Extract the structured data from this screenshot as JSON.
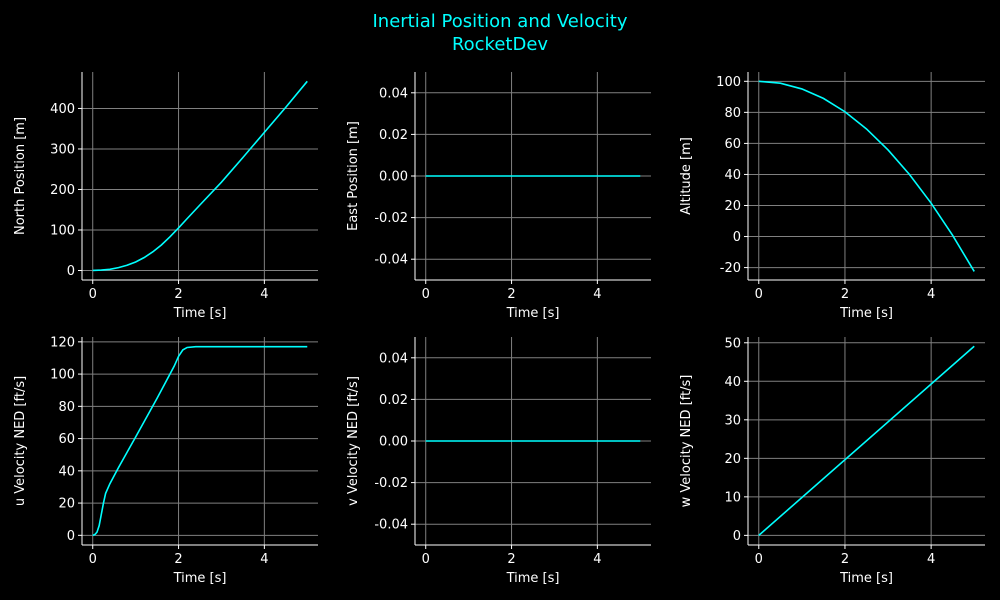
{
  "figure": {
    "title_line1": "Inertial Position and Velocity",
    "title_line2": "RocketDev",
    "background": "#000000",
    "text_color": "#ffffff",
    "accent": "#00ffff",
    "grid_color": "#808080"
  },
  "chart_data": [
    {
      "type": "line",
      "xlabel": "Time [s]",
      "ylabel": "North Position [m]",
      "xlim": [
        -0.25,
        5.25
      ],
      "ylim": [
        -23.5,
        490
      ],
      "xticks": [
        0,
        2,
        4
      ],
      "yticks": [
        0,
        100,
        200,
        300,
        400
      ],
      "grid": true,
      "series": [
        {
          "color": "#00ffff",
          "x": [
            0,
            0.2,
            0.4,
            0.6,
            0.8,
            1.0,
            1.2,
            1.4,
            1.6,
            1.8,
            2.0,
            2.2,
            2.5,
            3.0,
            3.5,
            4.0,
            4.5,
            5.0
          ],
          "y": [
            0,
            1,
            3,
            7,
            13,
            21,
            32,
            46,
            63,
            83,
            105,
            128,
            162,
            218,
            279,
            341,
            403,
            467
          ]
        }
      ]
    },
    {
      "type": "line",
      "xlabel": "Time [s]",
      "ylabel": "East Position [m]",
      "xlim": [
        -0.25,
        5.25
      ],
      "ylim": [
        -0.05,
        0.05
      ],
      "xticks": [
        0,
        2,
        4
      ],
      "yticks": [
        -0.04,
        -0.02,
        0.0,
        0.02,
        0.04
      ],
      "ytick_decimals": 2,
      "grid": true,
      "series": [
        {
          "color": "#00ffff",
          "x": [
            0,
            1,
            2,
            3,
            4,
            5
          ],
          "y": [
            0,
            0,
            0,
            0,
            0,
            0
          ]
        }
      ]
    },
    {
      "type": "line",
      "xlabel": "Time [s]",
      "ylabel": "Altitude [m]",
      "xlim": [
        -0.25,
        5.25
      ],
      "ylim": [
        -28,
        106
      ],
      "xticks": [
        0,
        2,
        4
      ],
      "yticks": [
        -20,
        0,
        20,
        40,
        60,
        80,
        100
      ],
      "grid": true,
      "series": [
        {
          "color": "#00ffff",
          "x": [
            0,
            0.5,
            1.0,
            1.5,
            2.0,
            2.5,
            3.0,
            3.5,
            4.0,
            4.5,
            5.0
          ],
          "y": [
            100,
            98.8,
            95.1,
            89.0,
            80.4,
            69.3,
            55.8,
            39.9,
            21.5,
            0.7,
            -22.5
          ]
        }
      ]
    },
    {
      "type": "line",
      "xlabel": "Time [s]",
      "ylabel": "u Velocity NED [ft/s]",
      "xlim": [
        -0.25,
        5.25
      ],
      "ylim": [
        -6,
        123
      ],
      "xticks": [
        0,
        2,
        4
      ],
      "yticks": [
        0,
        20,
        40,
        60,
        80,
        100,
        120
      ],
      "grid": true,
      "series": [
        {
          "color": "#00ffff",
          "x": [
            0,
            0.05,
            0.1,
            0.15,
            0.2,
            0.25,
            0.3,
            0.4,
            0.6,
            1.0,
            1.5,
            1.9,
            2.0,
            2.1,
            2.2,
            2.4,
            3.0,
            4.0,
            5.0
          ],
          "y": [
            0,
            0.5,
            2,
            6,
            13,
            20,
            26,
            32,
            42,
            61,
            85,
            105,
            111,
            115,
            116.5,
            117,
            117,
            117,
            117
          ]
        }
      ]
    },
    {
      "type": "line",
      "xlabel": "Time [s]",
      "ylabel": "v Velocity NED [ft/s]",
      "xlim": [
        -0.25,
        5.25
      ],
      "ylim": [
        -0.05,
        0.05
      ],
      "xticks": [
        0,
        2,
        4
      ],
      "yticks": [
        -0.04,
        -0.02,
        0.0,
        0.02,
        0.04
      ],
      "ytick_decimals": 2,
      "grid": true,
      "series": [
        {
          "color": "#00ffff",
          "x": [
            0,
            1,
            2,
            3,
            4,
            5
          ],
          "y": [
            0,
            0,
            0,
            0,
            0,
            0
          ]
        }
      ]
    },
    {
      "type": "line",
      "xlabel": "Time [s]",
      "ylabel": "w Velocity NED [ft/s]",
      "xlim": [
        -0.25,
        5.25
      ],
      "ylim": [
        -2.5,
        51.5
      ],
      "xticks": [
        0,
        2,
        4
      ],
      "yticks": [
        0,
        10,
        20,
        30,
        40,
        50
      ],
      "grid": true,
      "series": [
        {
          "color": "#00ffff",
          "x": [
            0,
            5
          ],
          "y": [
            0,
            49.1
          ]
        }
      ]
    }
  ]
}
